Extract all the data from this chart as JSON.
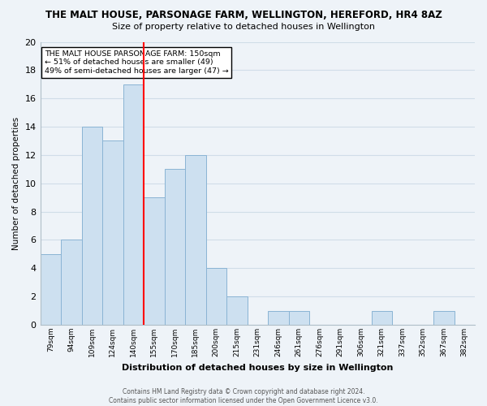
{
  "title": "THE MALT HOUSE, PARSONAGE FARM, WELLINGTON, HEREFORD, HR4 8AZ",
  "subtitle": "Size of property relative to detached houses in Wellington",
  "xlabel": "Distribution of detached houses by size in Wellington",
  "ylabel": "Number of detached properties",
  "bin_labels": [
    "79sqm",
    "94sqm",
    "109sqm",
    "124sqm",
    "140sqm",
    "155sqm",
    "170sqm",
    "185sqm",
    "200sqm",
    "215sqm",
    "231sqm",
    "246sqm",
    "261sqm",
    "276sqm",
    "291sqm",
    "306sqm",
    "321sqm",
    "337sqm",
    "352sqm",
    "367sqm",
    "382sqm"
  ],
  "bar_heights": [
    5,
    6,
    14,
    13,
    17,
    9,
    11,
    12,
    4,
    2,
    0,
    1,
    1,
    0,
    0,
    0,
    1,
    0,
    0,
    1,
    0
  ],
  "bar_color": "#cde0f0",
  "bar_edgecolor": "#8ab4d4",
  "reference_line_color": "red",
  "ylim": [
    0,
    20
  ],
  "yticks": [
    0,
    2,
    4,
    6,
    8,
    10,
    12,
    14,
    16,
    18,
    20
  ],
  "annotation_title": "THE MALT HOUSE PARSONAGE FARM: 150sqm",
  "annotation_line1": "← 51% of detached houses are smaller (49)",
  "annotation_line2": "49% of semi-detached houses are larger (47) →",
  "footer_line1": "Contains HM Land Registry data © Crown copyright and database right 2024.",
  "footer_line2": "Contains public sector information licensed under the Open Government Licence v3.0.",
  "grid_color": "#d0dde8",
  "background_color": "#eef3f8"
}
